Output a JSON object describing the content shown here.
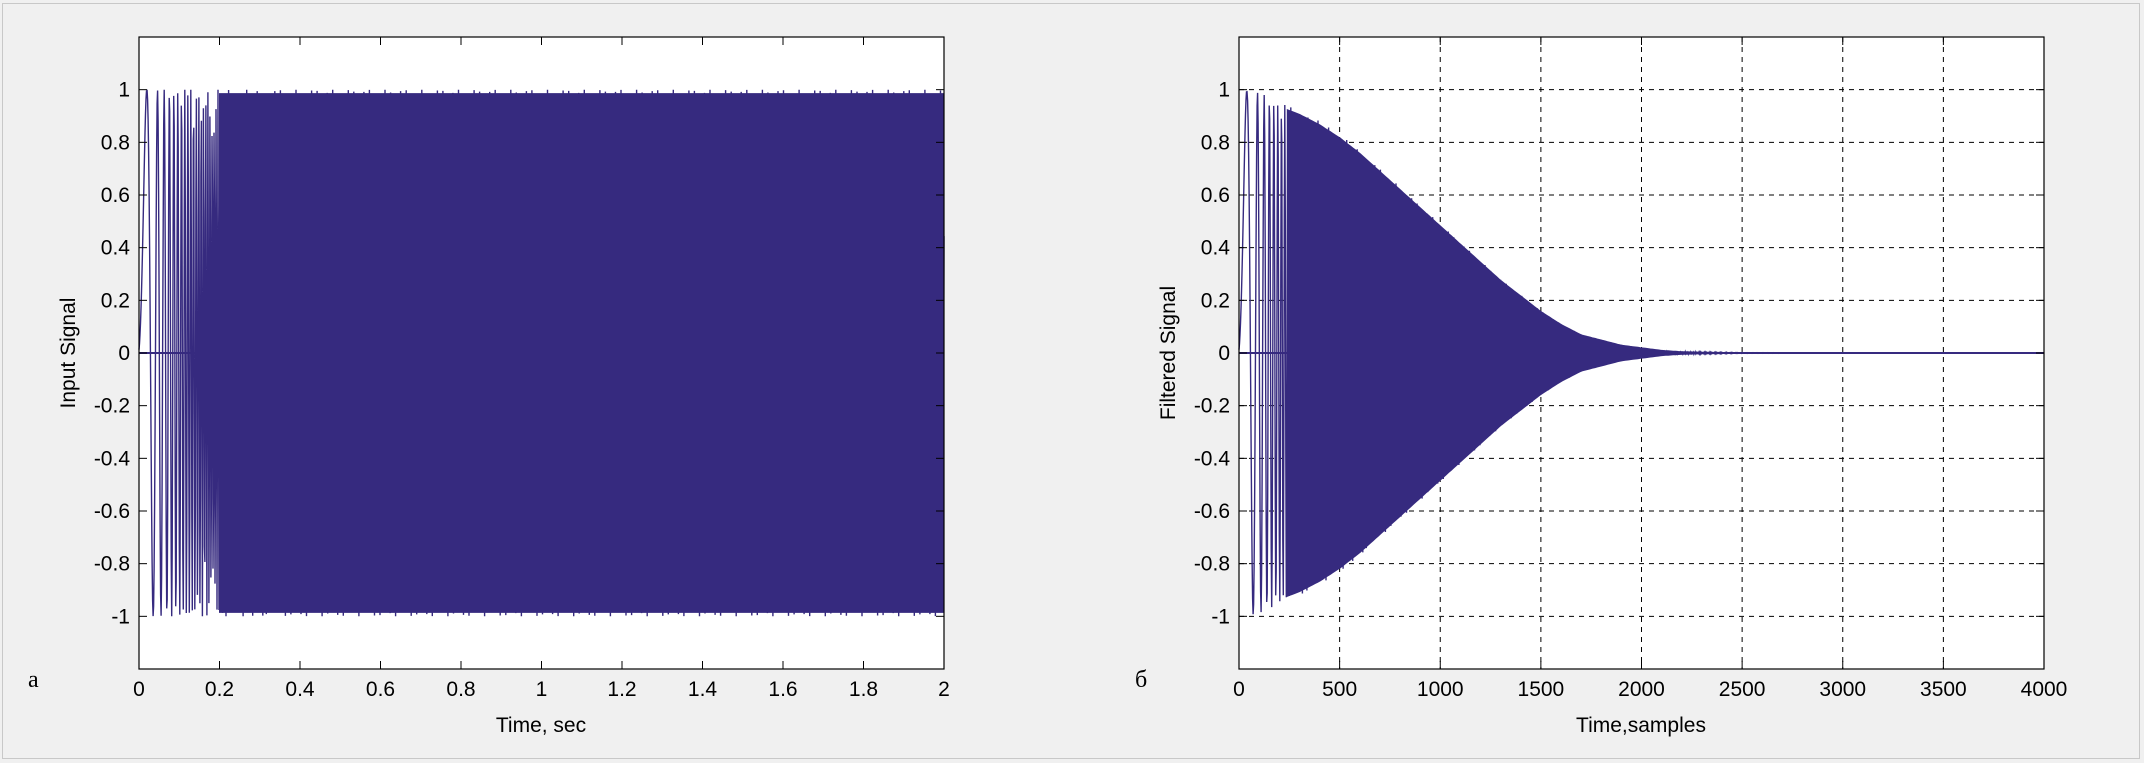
{
  "chart_data": [
    {
      "type": "line",
      "panel_label": "а",
      "xlabel": "Time, sec",
      "ylabel": "Input Signal",
      "xlim": [
        0,
        2
      ],
      "ylim": [
        -1.2,
        1.2
      ],
      "xticks": [
        0,
        0.2,
        0.4,
        0.6,
        0.8,
        1,
        1.2,
        1.4,
        1.6,
        1.8,
        2
      ],
      "xtick_labels": [
        "0",
        "0.2",
        "0.4",
        "0.6",
        "0.8",
        "1",
        "1.2",
        "1.4",
        "1.6",
        "1.8",
        "2"
      ],
      "yticks": [
        1,
        0.8,
        0.6,
        0.4,
        0.2,
        0,
        -0.2,
        -0.4,
        -0.6,
        -0.8,
        -1
      ],
      "ytick_labels": [
        "1",
        "0.8",
        "0.6",
        "0.4",
        "0.2",
        "0",
        "-0.2",
        "-0.4",
        "-0.6",
        "-0.8",
        "-1"
      ],
      "grid": false,
      "color": "#362a7f",
      "series": [
        {
          "description_of_signal": "chirp oscillating between -1 and 1",
          "envelope": {
            "x": [
              0,
              0.2,
              0.4,
              0.6,
              0.8,
              1.0,
              1.2,
              1.4,
              1.6,
              1.8,
              2.0
            ],
            "upper": [
              1,
              1,
              1,
              1,
              1,
              1,
              1,
              1,
              1,
              1,
              1
            ],
            "lower": [
              -1,
              -1,
              -1,
              -1,
              -1,
              -1,
              -1,
              -1,
              -1,
              -1,
              -1
            ]
          }
        }
      ]
    },
    {
      "type": "line",
      "panel_label": "б",
      "xlabel": "Time,samples",
      "ylabel": "Filtered Signal",
      "xlim": [
        0,
        4000
      ],
      "ylim": [
        -1.2,
        1.2
      ],
      "xticks": [
        0,
        500,
        1000,
        1500,
        2000,
        2500,
        3000,
        3500,
        4000
      ],
      "xtick_labels": [
        "0",
        "500",
        "1000",
        "1500",
        "2000",
        "2500",
        "3000",
        "3500",
        "4000"
      ],
      "yticks": [
        1,
        0.8,
        0.6,
        0.4,
        0.2,
        0,
        -0.2,
        -0.4,
        -0.6,
        -0.8,
        -1
      ],
      "ytick_labels": [
        "1",
        "0.8",
        "0.6",
        "0.4",
        "0.2",
        "0",
        "-0.2",
        "-0.4",
        "-0.6",
        "-0.8",
        "-1"
      ],
      "grid": true,
      "color": "#362a7f",
      "series": [
        {
          "envelope": {
            "x": [
              0,
              100,
              200,
              300,
              400,
              500,
              600,
              700,
              800,
              900,
              1000,
              1100,
              1200,
              1300,
              1400,
              1500,
              1600,
              1700,
              1800,
              1900,
              2000,
              2100,
              2200,
              2300,
              2400,
              2500,
              3000,
              4000
            ],
            "upper": [
              1,
              0.99,
              0.95,
              0.92,
              0.88,
              0.83,
              0.77,
              0.7,
              0.63,
              0.56,
              0.49,
              0.42,
              0.35,
              0.28,
              0.22,
              0.16,
              0.11,
              0.07,
              0.05,
              0.03,
              0.02,
              0.01,
              0.005,
              0.003,
              0.002,
              0.001,
              0,
              0
            ],
            "lower": [
              -1,
              -0.99,
              -0.95,
              -0.92,
              -0.88,
              -0.83,
              -0.77,
              -0.7,
              -0.63,
              -0.56,
              -0.49,
              -0.42,
              -0.35,
              -0.28,
              -0.22,
              -0.16,
              -0.11,
              -0.07,
              -0.05,
              -0.03,
              -0.02,
              -0.01,
              -0.005,
              -0.003,
              -0.002,
              -0.001,
              0,
              0
            ]
          }
        }
      ]
    }
  ]
}
